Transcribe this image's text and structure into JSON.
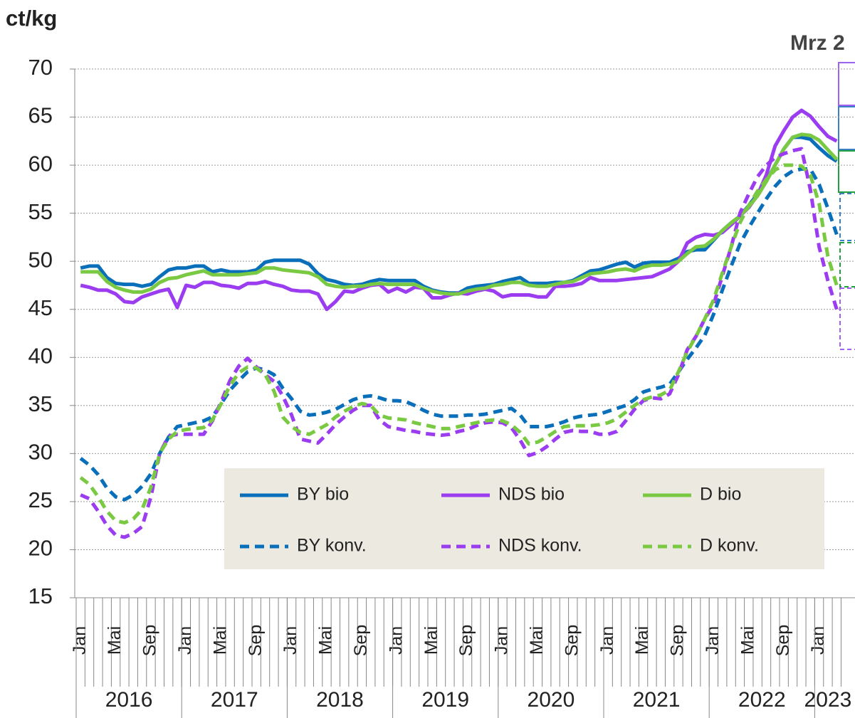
{
  "chart_data": {
    "type": "line",
    "y_label": "ct/kg",
    "annotation": "Mrz 2",
    "categories": [
      "Jan",
      null,
      null,
      null,
      "Mai",
      null,
      null,
      null,
      "Sep",
      null,
      null,
      null,
      "Jan",
      null,
      null,
      null,
      "Mai",
      null,
      null,
      null,
      "Sep",
      null,
      null,
      null,
      "Jan",
      null,
      null,
      null,
      "Mai",
      null,
      null,
      null,
      "Sep",
      null,
      null,
      null,
      "Jan",
      null,
      null,
      null,
      "Mai",
      null,
      null,
      null,
      "Sep",
      null,
      null,
      null,
      "Jan",
      null,
      null,
      null,
      "Mai",
      null,
      null,
      null,
      "Sep",
      null,
      null,
      null,
      "Jan",
      null,
      null,
      null,
      "Mai",
      null,
      null,
      null,
      "Sep",
      null,
      null,
      null,
      "Jan",
      null,
      null,
      null,
      "Mai",
      null,
      null,
      null,
      "Sep",
      null,
      null,
      null,
      "Jan",
      null,
      null
    ],
    "year_groups": [
      "2016",
      "2017",
      "2018",
      "2019",
      "2020",
      "2021",
      "2022",
      "2023"
    ],
    "ylim": [
      15,
      70
    ],
    "yticks": [
      15,
      20,
      25,
      30,
      35,
      40,
      45,
      50,
      55,
      60,
      65,
      70
    ],
    "grid": true,
    "legend": "lower-right",
    "series": [
      {
        "name": "BY bio",
        "color": "#0a6fba",
        "dashed": false,
        "values": [
          49.3,
          49.5,
          49.5,
          48.3,
          47.7,
          47.6,
          47.6,
          47.4,
          47.6,
          48.4,
          49.1,
          49.3,
          49.3,
          49.5,
          49.5,
          48.9,
          49.1,
          48.9,
          48.9,
          48.9,
          49.1,
          49.9,
          50.1,
          50.1,
          50.1,
          50.1,
          49.7,
          48.7,
          48.1,
          47.9,
          47.6,
          47.5,
          47.6,
          47.9,
          48.1,
          48.0,
          48.0,
          48.0,
          48.0,
          47.4,
          47.0,
          46.8,
          46.7,
          46.7,
          47.2,
          47.4,
          47.5,
          47.6,
          47.9,
          48.1,
          48.3,
          47.7,
          47.7,
          47.7,
          47.8,
          47.8,
          48.0,
          48.5,
          49.0,
          49.1,
          49.4,
          49.7,
          49.9,
          49.4,
          49.8,
          49.9,
          49.9,
          49.9,
          50.3,
          51.0,
          51.2,
          51.2,
          52.2,
          53.2,
          54.0,
          54.7,
          55.8,
          57.0,
          58.4,
          60.0,
          61.7,
          62.9,
          62.9,
          62.7,
          61.8,
          61.0,
          60.4
        ]
      },
      {
        "name": "NDS bio",
        "color": "#9b3cf0",
        "dashed": false,
        "values": [
          47.5,
          47.3,
          47.0,
          47.0,
          46.6,
          45.8,
          45.7,
          46.3,
          46.6,
          46.9,
          47.1,
          45.2,
          47.5,
          47.3,
          47.8,
          47.8,
          47.5,
          47.4,
          47.2,
          47.7,
          47.7,
          47.9,
          47.6,
          47.4,
          47.0,
          46.9,
          46.9,
          46.6,
          45.0,
          45.8,
          46.9,
          46.8,
          47.2,
          47.5,
          47.6,
          46.8,
          47.2,
          46.8,
          47.3,
          47.2,
          46.2,
          46.2,
          46.5,
          46.7,
          46.6,
          46.9,
          47.1,
          46.9,
          46.3,
          46.5,
          46.5,
          46.5,
          46.3,
          46.3,
          47.4,
          47.4,
          47.5,
          47.7,
          48.3,
          48.0,
          48.0,
          48.0,
          48.1,
          48.2,
          48.3,
          48.4,
          48.8,
          49.2,
          50.0,
          51.9,
          52.5,
          52.8,
          52.7,
          53.0,
          53.8,
          54.7,
          55.6,
          56.9,
          59.0,
          62.0,
          63.6,
          65.0,
          65.7,
          65.1,
          64.0,
          63.0,
          62.5
        ]
      },
      {
        "name": "D bio",
        "color": "#7ac943",
        "dashed": false,
        "values": [
          48.9,
          48.9,
          48.9,
          47.9,
          47.3,
          47.0,
          46.8,
          46.8,
          47.1,
          47.8,
          48.2,
          48.3,
          48.6,
          48.8,
          49.0,
          48.6,
          48.6,
          48.6,
          48.6,
          48.7,
          48.8,
          49.3,
          49.3,
          49.1,
          49.0,
          48.9,
          48.8,
          48.4,
          47.6,
          47.4,
          47.3,
          47.4,
          47.4,
          47.6,
          47.7,
          47.6,
          47.6,
          47.6,
          47.6,
          47.2,
          46.9,
          46.7,
          46.6,
          46.6,
          46.9,
          47.1,
          47.2,
          47.5,
          47.6,
          47.8,
          47.8,
          47.5,
          47.4,
          47.4,
          47.6,
          47.8,
          47.9,
          48.3,
          48.7,
          48.8,
          48.9,
          49.1,
          49.2,
          49.0,
          49.4,
          49.6,
          49.6,
          49.7,
          50.0,
          50.8,
          51.5,
          51.6,
          52.3,
          53.2,
          54.0,
          54.7,
          55.7,
          56.8,
          58.3,
          60.0,
          61.7,
          62.9,
          63.2,
          63.1,
          62.6,
          61.6,
          60.6
        ]
      },
      {
        "name": "BY konv.",
        "color": "#0a6fba",
        "dashed": true,
        "values": [
          29.5,
          28.8,
          27.8,
          26.4,
          25.5,
          25.2,
          25.7,
          26.6,
          27.9,
          30.0,
          31.7,
          32.8,
          33.0,
          33.2,
          33.4,
          33.8,
          35.2,
          36.6,
          37.6,
          38.5,
          38.9,
          38.7,
          38.2,
          36.8,
          35.7,
          34.4,
          34.0,
          34.1,
          34.3,
          34.6,
          35.1,
          35.6,
          35.9,
          36.0,
          35.8,
          35.5,
          35.5,
          35.4,
          35.0,
          34.5,
          34.1,
          33.9,
          33.9,
          33.9,
          34.0,
          34.0,
          34.1,
          34.3,
          34.5,
          34.7,
          34.0,
          32.8,
          32.8,
          32.8,
          33.0,
          33.3,
          33.7,
          33.9,
          34.0,
          34.1,
          34.4,
          34.7,
          35.0,
          35.6,
          36.4,
          36.7,
          36.9,
          37.2,
          38.5,
          39.8,
          41.0,
          42.3,
          44.5,
          47.0,
          49.5,
          51.8,
          53.5,
          55.0,
          56.5,
          57.8,
          58.8,
          59.4,
          59.6,
          59.6,
          58.0,
          55.5,
          52.8
        ]
      },
      {
        "name": "NDS konv.",
        "color": "#9b3cf0",
        "dashed": true,
        "values": [
          25.7,
          25.3,
          24.0,
          22.5,
          21.5,
          21.3,
          21.7,
          22.4,
          25.5,
          30.0,
          31.8,
          32.0,
          32.0,
          32.0,
          32.0,
          33.4,
          35.4,
          37.6,
          39.1,
          39.9,
          39.0,
          38.2,
          37.5,
          36.0,
          34.0,
          31.5,
          31.3,
          31.1,
          32.0,
          33.0,
          33.8,
          34.5,
          35.0,
          35.0,
          33.5,
          32.8,
          32.6,
          32.4,
          32.3,
          32.1,
          32.0,
          31.9,
          32.0,
          32.3,
          32.5,
          32.9,
          33.2,
          33.3,
          33.2,
          32.7,
          31.4,
          29.8,
          30.1,
          30.7,
          31.5,
          32.2,
          32.4,
          32.3,
          32.3,
          32.0,
          32.0,
          32.3,
          33.4,
          34.6,
          35.5,
          35.8,
          35.7,
          36.2,
          38.2,
          40.8,
          42.2,
          44.0,
          45.5,
          48.5,
          51.5,
          55.0,
          57.0,
          58.8,
          60.0,
          60.8,
          61.2,
          61.5,
          61.7,
          57.5,
          51.5,
          48.0,
          45.0
        ]
      },
      {
        "name": "D konv.",
        "color": "#7ac943",
        "dashed": true,
        "values": [
          27.5,
          26.8,
          25.5,
          24.0,
          23.0,
          22.8,
          23.2,
          24.2,
          26.5,
          30.0,
          31.5,
          32.3,
          32.5,
          32.6,
          32.7,
          33.5,
          35.2,
          37.1,
          38.4,
          39.0,
          38.9,
          38.2,
          36.5,
          33.8,
          32.8,
          32.2,
          32.0,
          32.5,
          33.0,
          33.8,
          34.4,
          34.9,
          35.2,
          35.0,
          34.0,
          33.7,
          33.6,
          33.5,
          33.2,
          33.0,
          32.8,
          32.6,
          32.6,
          32.8,
          33.0,
          33.2,
          33.4,
          33.5,
          33.4,
          33.0,
          32.2,
          31.0,
          31.2,
          31.7,
          32.3,
          32.8,
          32.9,
          32.9,
          32.9,
          33.0,
          33.2,
          33.6,
          34.3,
          35.0,
          35.6,
          35.9,
          36.1,
          36.6,
          38.5,
          40.6,
          42.2,
          44.0,
          46.0,
          48.8,
          51.5,
          54.0,
          55.8,
          57.3,
          58.5,
          59.5,
          60.0,
          60.0,
          59.9,
          59.0,
          56.0,
          50.5,
          47.5
        ]
      }
    ]
  }
}
